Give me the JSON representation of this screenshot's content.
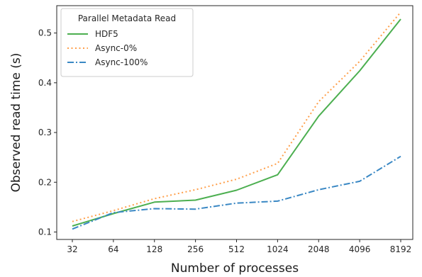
{
  "chart_data": {
    "type": "line",
    "xlabel": "Number of processes",
    "ylabel": "Observed read time (s)",
    "categories": [
      "32",
      "64",
      "128",
      "256",
      "512",
      "1024",
      "2048",
      "4096",
      "8192"
    ],
    "ylim": [
      0.085,
      0.555
    ],
    "yticks": [
      0.1,
      0.2,
      0.3,
      0.4,
      0.5
    ],
    "ytick_labels": [
      "0.1",
      "0.2",
      "0.3",
      "0.4",
      "0.5"
    ],
    "grid": false,
    "legend": {
      "title": "Parallel Metadata Read",
      "placement": "top-left"
    },
    "series": [
      {
        "name": "HDF5",
        "style": "solid",
        "color": "#4caf50",
        "values": [
          0.112,
          0.137,
          0.16,
          0.164,
          0.184,
          0.215,
          0.333,
          0.424,
          0.528
        ]
      },
      {
        "name": "Async-0%",
        "style": "dotted",
        "color": "#ff9f4a",
        "values": [
          0.121,
          0.143,
          0.167,
          0.185,
          0.206,
          0.238,
          0.362,
          0.443,
          0.542
        ]
      },
      {
        "name": "Async-100%",
        "style": "dashdot",
        "color": "#3a88c4",
        "values": [
          0.106,
          0.139,
          0.147,
          0.146,
          0.158,
          0.162,
          0.185,
          0.202,
          0.252
        ]
      }
    ]
  }
}
